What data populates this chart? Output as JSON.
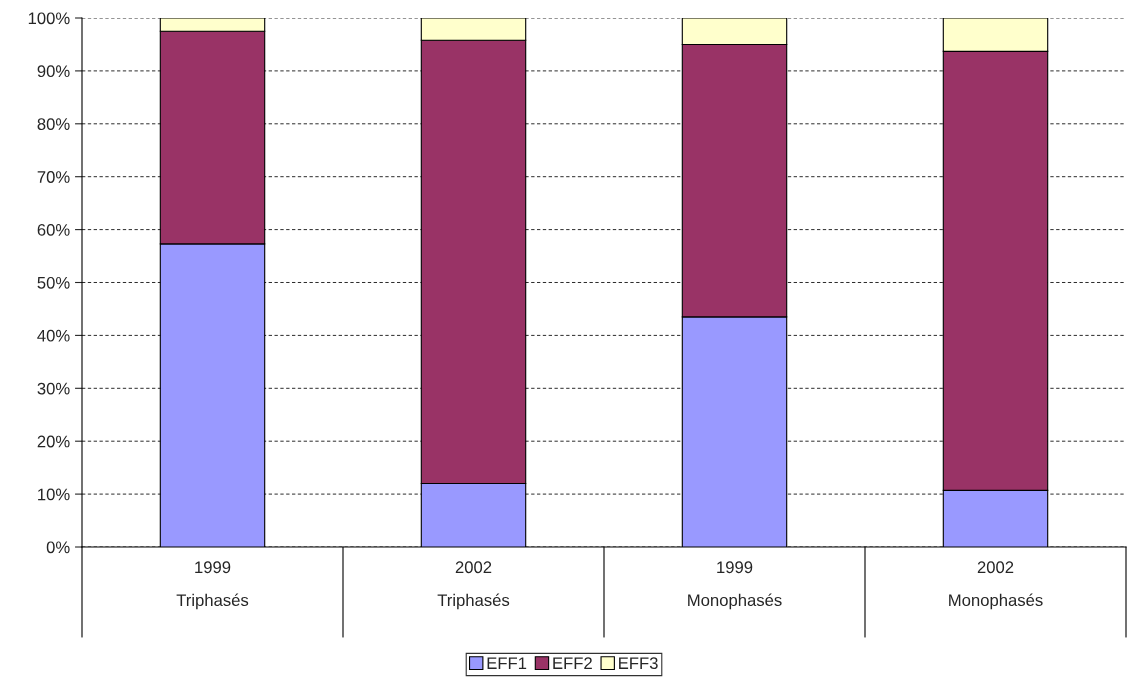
{
  "chart_data": {
    "type": "bar",
    "stacked": true,
    "categories": [
      "1999\nTriphasés",
      "2002\nTriphasés",
      "1999\nMonophasés",
      "2002\nMonophasés"
    ],
    "series": [
      {
        "name": "EFF1",
        "color": "#9999ff",
        "values": [
          57.3,
          12,
          43.5,
          10.7
        ]
      },
      {
        "name": "EFF2",
        "color": "#993366",
        "values": [
          40.2,
          83.8,
          51.5,
          83
        ]
      },
      {
        "name": "EFF3",
        "color": "#ffffcc",
        "values": [
          2.5,
          4.2,
          5,
          6.3
        ]
      }
    ],
    "ylim": [
      0,
      100
    ],
    "yticks": [
      {
        "value": 0,
        "label": "0%"
      },
      {
        "value": 10,
        "label": "10%"
      },
      {
        "value": 20,
        "label": "20%"
      },
      {
        "value": 30,
        "label": "30%"
      },
      {
        "value": 40,
        "label": "40%"
      },
      {
        "value": 50,
        "label": "50%"
      },
      {
        "value": 60,
        "label": "60%"
      },
      {
        "value": 70,
        "label": "70%"
      },
      {
        "value": 80,
        "label": "80%"
      },
      {
        "value": 90,
        "label": "90%"
      },
      {
        "value": 100,
        "label": "100%"
      }
    ],
    "grid": "y",
    "legend": "bottom"
  }
}
